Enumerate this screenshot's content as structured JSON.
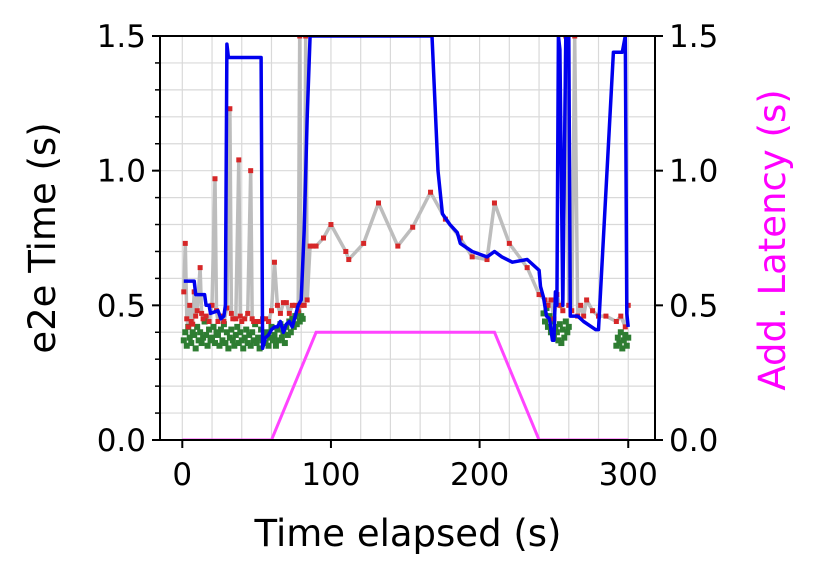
{
  "chart_data": {
    "type": "line",
    "xlabel": "Time elapsed (s)",
    "ylabel": "e2e Time (s)",
    "ylabel_right": {
      "prefix": "Add.",
      "highlight": "Latency (s)",
      "prefix_color": "#ff00ff",
      "highlight_color": "#ff00ff"
    },
    "xlim": [
      -15,
      318
    ],
    "ylim": [
      0,
      1.5
    ],
    "y2lim": [
      0,
      1.5
    ],
    "x_ticks": [
      0,
      100,
      200,
      300
    ],
    "x_tick_labels": [
      "0",
      "100",
      "200",
      "300"
    ],
    "y_ticks": [
      0.0,
      0.5,
      1.0,
      1.5
    ],
    "y_tick_labels": [
      "0.0",
      "0.5",
      "1.0",
      "1.5"
    ],
    "y2_tick_labels": [
      "0.0",
      "0.5",
      "1.0",
      "1.5"
    ],
    "grid": true,
    "colors": {
      "gray_line": "#bdbdbd",
      "red_points": "#d62728",
      "green_points": "#2e7d32",
      "blue_line": "#0000ee",
      "magenta_line": "#ff44ff"
    },
    "series": [
      {
        "style": "gray-line-with-red-markers",
        "points": [
          [
            1,
            0.55
          ],
          [
            2,
            0.73
          ],
          [
            3,
            0.45
          ],
          [
            4,
            0.42
          ],
          [
            5,
            0.5
          ],
          [
            6,
            0.44
          ],
          [
            7,
            0.43
          ],
          [
            8,
            0.55
          ],
          [
            9,
            0.46
          ],
          [
            10,
            0.48
          ],
          [
            12,
            0.64
          ],
          [
            13,
            0.47
          ],
          [
            14,
            0.45
          ],
          [
            16,
            0.46
          ],
          [
            18,
            0.44
          ],
          [
            20,
            0.5
          ],
          [
            22,
            0.97
          ],
          [
            23,
            0.48
          ],
          [
            24,
            0.44
          ],
          [
            26,
            0.46
          ],
          [
            28,
            0.44
          ],
          [
            30,
            0.49
          ],
          [
            32,
            1.23
          ],
          [
            33,
            0.47
          ],
          [
            34,
            0.45
          ],
          [
            36,
            0.45
          ],
          [
            38,
            1.04
          ],
          [
            39,
            0.46
          ],
          [
            40,
            0.44
          ],
          [
            42,
            0.45
          ],
          [
            44,
            0.47
          ],
          [
            46,
            1.0
          ],
          [
            47,
            0.45
          ],
          [
            48,
            0.44
          ],
          [
            50,
            0.44
          ],
          [
            52,
            0.44
          ],
          [
            54,
            0.45
          ],
          [
            56,
            0.45
          ],
          [
            58,
            0.44
          ],
          [
            60,
            0.48
          ],
          [
            62,
            0.66
          ],
          [
            64,
            0.5
          ],
          [
            66,
            0.47
          ],
          [
            68,
            0.51
          ],
          [
            70,
            0.51
          ],
          [
            72,
            0.47
          ],
          [
            74,
            0.5
          ],
          [
            76,
            0.5
          ],
          [
            78,
            0.48
          ],
          [
            79,
            1.5
          ],
          [
            80,
            0.5
          ],
          [
            82,
            0.5
          ],
          [
            83,
            1.5
          ],
          [
            84,
            0.52
          ],
          [
            86,
            0.72
          ],
          [
            88,
            0.72
          ],
          [
            90,
            0.72
          ],
          [
            95,
            0.75
          ],
          [
            100,
            0.8
          ],
          [
            110,
            0.7
          ],
          [
            112,
            0.67
          ],
          [
            122,
            0.73
          ],
          [
            132,
            0.88
          ],
          [
            145,
            0.72
          ],
          [
            155,
            0.79
          ],
          [
            167,
            0.92
          ],
          [
            177,
            0.82
          ],
          [
            187,
            0.75
          ],
          [
            195,
            0.68
          ],
          [
            205,
            0.67
          ],
          [
            210,
            0.88
          ],
          [
            220,
            0.73
          ],
          [
            232,
            0.64
          ],
          [
            240,
            0.54
          ],
          [
            244,
            0.52
          ],
          [
            246,
            0.5
          ],
          [
            248,
            0.52
          ],
          [
            250,
            0.45
          ],
          [
            252,
            0.54
          ],
          [
            254,
            0.5
          ],
          [
            256,
            0.48
          ],
          [
            258,
            1.5
          ],
          [
            260,
            0.5
          ],
          [
            262,
            0.48
          ],
          [
            264,
            1.5
          ],
          [
            266,
            0.46
          ],
          [
            268,
            0.5
          ],
          [
            270,
            0.46
          ],
          [
            272,
            0.52
          ],
          [
            276,
            0.48
          ],
          [
            280,
            0.46
          ],
          [
            285,
            0.46
          ],
          [
            292,
            0.44
          ],
          [
            295,
            0.46
          ],
          [
            298,
            0.42
          ],
          [
            300,
            0.5
          ]
        ]
      },
      {
        "style": "green-markers",
        "points": [
          [
            1,
            0.37
          ],
          [
            2,
            0.4
          ],
          [
            3,
            0.35
          ],
          [
            4,
            0.42
          ],
          [
            5,
            0.38
          ],
          [
            6,
            0.36
          ],
          [
            7,
            0.4
          ],
          [
            8,
            0.39
          ],
          [
            9,
            0.34
          ],
          [
            10,
            0.42
          ],
          [
            11,
            0.37
          ],
          [
            12,
            0.4
          ],
          [
            13,
            0.36
          ],
          [
            14,
            0.38
          ],
          [
            15,
            0.44
          ],
          [
            16,
            0.39
          ],
          [
            17,
            0.35
          ],
          [
            18,
            0.41
          ],
          [
            19,
            0.37
          ],
          [
            20,
            0.38
          ],
          [
            21,
            0.42
          ],
          [
            22,
            0.36
          ],
          [
            23,
            0.4
          ],
          [
            24,
            0.39
          ],
          [
            25,
            0.35
          ],
          [
            26,
            0.41
          ],
          [
            27,
            0.37
          ],
          [
            28,
            0.43
          ],
          [
            29,
            0.36
          ],
          [
            30,
            0.4
          ],
          [
            31,
            0.34
          ],
          [
            32,
            0.38
          ],
          [
            33,
            0.41
          ],
          [
            34,
            0.37
          ],
          [
            35,
            0.35
          ],
          [
            36,
            0.39
          ],
          [
            37,
            0.42
          ],
          [
            38,
            0.36
          ],
          [
            39,
            0.4
          ],
          [
            40,
            0.37
          ],
          [
            41,
            0.34
          ],
          [
            42,
            0.38
          ],
          [
            43,
            0.41
          ],
          [
            44,
            0.36
          ],
          [
            45,
            0.39
          ],
          [
            46,
            0.35
          ],
          [
            47,
            0.4
          ],
          [
            48,
            0.37
          ],
          [
            49,
            0.43
          ],
          [
            50,
            0.36
          ],
          [
            51,
            0.38
          ],
          [
            52,
            0.34
          ],
          [
            53,
            0.41
          ],
          [
            54,
            0.37
          ],
          [
            55,
            0.39
          ],
          [
            56,
            0.36
          ],
          [
            57,
            0.4
          ],
          [
            58,
            0.35
          ],
          [
            59,
            0.38
          ],
          [
            60,
            0.42
          ],
          [
            61,
            0.37
          ],
          [
            62,
            0.39
          ],
          [
            63,
            0.35
          ],
          [
            64,
            0.41
          ],
          [
            65,
            0.37
          ],
          [
            66,
            0.43
          ],
          [
            67,
            0.38
          ],
          [
            68,
            0.4
          ],
          [
            69,
            0.36
          ],
          [
            70,
            0.42
          ],
          [
            71,
            0.39
          ],
          [
            72,
            0.44
          ],
          [
            73,
            0.4
          ],
          [
            74,
            0.45
          ],
          [
            75,
            0.42
          ],
          [
            76,
            0.46
          ],
          [
            77,
            0.43
          ],
          [
            78,
            0.47
          ],
          [
            79,
            0.44
          ],
          [
            80,
            0.46
          ],
          [
            81,
            0.45
          ],
          [
            243,
            0.47
          ],
          [
            244,
            0.44
          ],
          [
            245,
            0.49
          ],
          [
            246,
            0.42
          ],
          [
            247,
            0.46
          ],
          [
            248,
            0.4
          ],
          [
            249,
            0.44
          ],
          [
            250,
            0.38
          ],
          [
            251,
            0.42
          ],
          [
            252,
            0.4
          ],
          [
            253,
            0.37
          ],
          [
            254,
            0.43
          ],
          [
            255,
            0.36
          ],
          [
            256,
            0.41
          ],
          [
            257,
            0.38
          ],
          [
            258,
            0.44
          ],
          [
            259,
            0.4
          ],
          [
            260,
            0.42
          ],
          [
            292,
            0.35
          ],
          [
            293,
            0.38
          ],
          [
            294,
            0.36
          ],
          [
            295,
            0.4
          ],
          [
            296,
            0.34
          ],
          [
            297,
            0.37
          ],
          [
            298,
            0.39
          ],
          [
            299,
            0.35
          ],
          [
            300,
            0.38
          ]
        ]
      },
      {
        "style": "blue-line",
        "points": [
          [
            1,
            0.59
          ],
          [
            8,
            0.59
          ],
          [
            9,
            0.54
          ],
          [
            15,
            0.54
          ],
          [
            16,
            0.5
          ],
          [
            18,
            0.5
          ],
          [
            19,
            0.47
          ],
          [
            24,
            0.48
          ],
          [
            26,
            0.45
          ],
          [
            28,
            0.46
          ],
          [
            29,
            0.5
          ],
          [
            30,
            1.47
          ],
          [
            31,
            1.42
          ],
          [
            53,
            1.42
          ],
          [
            54,
            0.34
          ],
          [
            56,
            0.38
          ],
          [
            58,
            0.39
          ],
          [
            60,
            0.41
          ],
          [
            62,
            0.42
          ],
          [
            64,
            0.42
          ],
          [
            66,
            0.44
          ],
          [
            68,
            0.4
          ],
          [
            70,
            0.43
          ],
          [
            72,
            0.44
          ],
          [
            74,
            0.42
          ],
          [
            76,
            0.46
          ],
          [
            78,
            0.5
          ],
          [
            80,
            0.52
          ],
          [
            82,
            0.78
          ],
          [
            84,
            1.2
          ],
          [
            86,
            1.5
          ],
          [
            168,
            1.5
          ],
          [
            172,
            1.0
          ],
          [
            175,
            0.84
          ],
          [
            180,
            0.8
          ],
          [
            185,
            0.77
          ],
          [
            187,
            0.73
          ],
          [
            195,
            0.7
          ],
          [
            205,
            0.68
          ],
          [
            210,
            0.7
          ],
          [
            215,
            0.68
          ],
          [
            222,
            0.66
          ],
          [
            232,
            0.67
          ],
          [
            240,
            0.63
          ],
          [
            241,
            0.57
          ],
          [
            243,
            0.53
          ],
          [
            245,
            0.46
          ],
          [
            247,
            0.45
          ],
          [
            249,
            0.37
          ],
          [
            250,
            0.37
          ],
          [
            251,
            0.55
          ],
          [
            252,
            0.5
          ],
          [
            253,
            1.5
          ],
          [
            254,
            1.45
          ],
          [
            256,
            0.5
          ],
          [
            258,
            1.5
          ],
          [
            260,
            1.5
          ],
          [
            261,
            0.46
          ],
          [
            266,
            0.46
          ],
          [
            270,
            0.44
          ],
          [
            278,
            0.41
          ],
          [
            280,
            0.41
          ],
          [
            290,
            1.44
          ],
          [
            296,
            1.44
          ],
          [
            298,
            1.5
          ],
          [
            299,
            0.47
          ],
          [
            300,
            0.42
          ]
        ]
      },
      {
        "style": "magenta-line",
        "axis": "right",
        "points": [
          [
            0,
            0
          ],
          [
            60,
            0
          ],
          [
            90,
            0.4
          ],
          [
            210,
            0.4
          ],
          [
            240,
            0
          ],
          [
            300,
            0
          ]
        ]
      }
    ]
  }
}
